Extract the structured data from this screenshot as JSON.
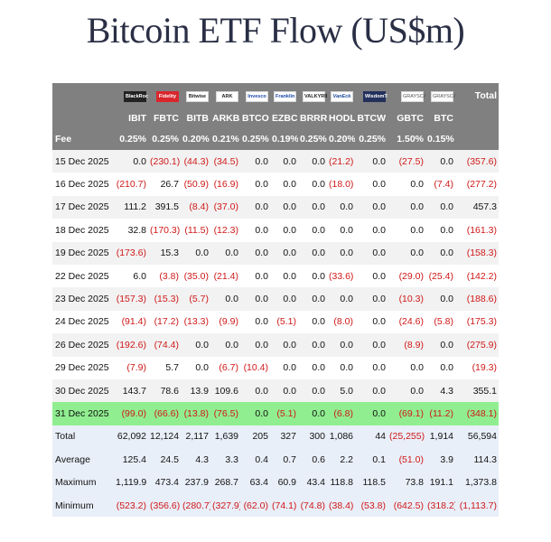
{
  "title": "Bitcoin ETF Flow (US$m)",
  "colors": {
    "header_bg": "#808080",
    "negative": "#d01818",
    "highlight_row": "#90ee90",
    "summary_bg": "#e9eff9"
  },
  "issuers": [
    {
      "name": "BlackRock",
      "icon": "blackrock-logo"
    },
    {
      "name": "Fidelity",
      "icon": "fidelity-logo"
    },
    {
      "name": "Bitwise",
      "icon": "bitwise-logo"
    },
    {
      "name": "ARK",
      "icon": "ark-invest-logo"
    },
    {
      "name": "Invesco",
      "icon": "invesco-logo"
    },
    {
      "name": "Franklin",
      "icon": "franklin-logo"
    },
    {
      "name": "VALKYRIE",
      "icon": "valkyrie-logo"
    },
    {
      "name": "VanEck",
      "icon": "vaneck-logo"
    },
    {
      "name": "WisdomTree",
      "icon": "wisdomtree-logo"
    },
    {
      "name": "GRAYSCALE",
      "icon": "grayscale-logo"
    },
    {
      "name": "GRAYSCALE",
      "icon": "grayscale-logo"
    }
  ],
  "header": {
    "total_label": "Total",
    "tickers": [
      "IBIT",
      "FBTC",
      "BITB",
      "ARKB",
      "BTCO",
      "EZBC",
      "BRRR",
      "HODL",
      "BTCW",
      "GBTC",
      "BTC"
    ],
    "fee_label": "Fee",
    "fees": [
      "0.25%",
      "0.25%",
      "0.20%",
      "0.21%",
      "0.25%",
      "0.19%",
      "0.25%",
      "0.20%",
      "0.25%",
      "1.50%",
      "0.15%"
    ]
  },
  "rows": [
    {
      "date": "15 Dec 2025",
      "values": [
        "0.0",
        "(230.1)",
        "(44.3)",
        "(34.5)",
        "0.0",
        "0.0",
        "0.0",
        "(21.2)",
        "0.0",
        "(27.5)",
        "0.0"
      ],
      "total": "(357.6)"
    },
    {
      "date": "16 Dec 2025",
      "values": [
        "(210.7)",
        "26.7",
        "(50.9)",
        "(16.9)",
        "0.0",
        "0.0",
        "0.0",
        "(18.0)",
        "0.0",
        "0.0",
        "(7.4)"
      ],
      "total": "(277.2)"
    },
    {
      "date": "17 Dec 2025",
      "values": [
        "111.2",
        "391.5",
        "(8.4)",
        "(37.0)",
        "0.0",
        "0.0",
        "0.0",
        "0.0",
        "0.0",
        "0.0",
        "0.0"
      ],
      "total": "457.3"
    },
    {
      "date": "18 Dec 2025",
      "values": [
        "32.8",
        "(170.3)",
        "(11.5)",
        "(12.3)",
        "0.0",
        "0.0",
        "0.0",
        "0.0",
        "0.0",
        "0.0",
        "0.0"
      ],
      "total": "(161.3)"
    },
    {
      "date": "19 Dec 2025",
      "values": [
        "(173.6)",
        "15.3",
        "0.0",
        "0.0",
        "0.0",
        "0.0",
        "0.0",
        "0.0",
        "0.0",
        "0.0",
        "0.0"
      ],
      "total": "(158.3)"
    },
    {
      "date": "22 Dec 2025",
      "values": [
        "6.0",
        "(3.8)",
        "(35.0)",
        "(21.4)",
        "0.0",
        "0.0",
        "0.0",
        "(33.6)",
        "0.0",
        "(29.0)",
        "(25.4)"
      ],
      "total": "(142.2)"
    },
    {
      "date": "23 Dec 2025",
      "values": [
        "(157.3)",
        "(15.3)",
        "(5.7)",
        "0.0",
        "0.0",
        "0.0",
        "0.0",
        "0.0",
        "0.0",
        "(10.3)",
        "0.0"
      ],
      "total": "(188.6)"
    },
    {
      "date": "24 Dec 2025",
      "values": [
        "(91.4)",
        "(17.2)",
        "(13.3)",
        "(9.9)",
        "0.0",
        "(5.1)",
        "0.0",
        "(8.0)",
        "0.0",
        "(24.6)",
        "(5.8)"
      ],
      "total": "(175.3)"
    },
    {
      "date": "26 Dec 2025",
      "values": [
        "(192.6)",
        "(74.4)",
        "0.0",
        "0.0",
        "0.0",
        "0.0",
        "0.0",
        "0.0",
        "0.0",
        "(8.9)",
        "0.0"
      ],
      "total": "(275.9)"
    },
    {
      "date": "29 Dec 2025",
      "values": [
        "(7.9)",
        "5.7",
        "0.0",
        "(6.7)",
        "(10.4)",
        "0.0",
        "0.0",
        "0.0",
        "0.0",
        "0.0",
        "0.0"
      ],
      "total": "(19.3)"
    },
    {
      "date": "30 Dec 2025",
      "values": [
        "143.7",
        "78.6",
        "13.9",
        "109.6",
        "0.0",
        "0.0",
        "0.0",
        "5.0",
        "0.0",
        "0.0",
        "4.3"
      ],
      "total": "355.1"
    },
    {
      "date": "31 Dec 2025",
      "values": [
        "(99.0)",
        "(66.6)",
        "(13.8)",
        "(76.5)",
        "0.0",
        "(5.1)",
        "0.0",
        "(6.8)",
        "0.0",
        "(69.1)",
        "(11.2)"
      ],
      "total": "(348.1)",
      "highlight": true
    }
  ],
  "summary": [
    {
      "label": "Total",
      "values": [
        "62,092",
        "12,124",
        "2,117",
        "1,639",
        "205",
        "327",
        "300",
        "1,086",
        "44",
        "(25,255)",
        "1,914"
      ],
      "total": "56,594"
    },
    {
      "label": "Average",
      "values": [
        "125.4",
        "24.5",
        "4.3",
        "3.3",
        "0.4",
        "0.7",
        "0.6",
        "2.2",
        "0.1",
        "(51.0)",
        "3.9"
      ],
      "total": "114.3"
    },
    {
      "label": "Maximum",
      "values": [
        "1,119.9",
        "473.4",
        "237.9",
        "268.7",
        "63.4",
        "60.9",
        "43.4",
        "118.8",
        "118.5",
        "73.8",
        "191.1"
      ],
      "total": "1,373.8"
    },
    {
      "label": "Minimum",
      "values": [
        "(523.2)",
        "(356.6)",
        "(280.7)",
        "(327.9)",
        "(62.0)",
        "(74.1)",
        "(74.8)",
        "(38.4)",
        "(53.8)",
        "(642.5)",
        "(318.2)"
      ],
      "total": "(1,113.7)"
    }
  ]
}
